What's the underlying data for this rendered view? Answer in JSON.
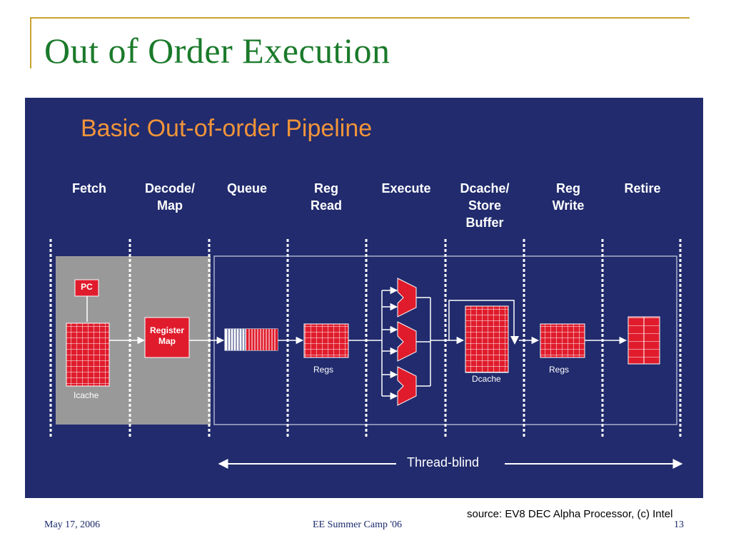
{
  "slide": {
    "title": "Out of Order Execution",
    "footer_date": "May 17, 2006",
    "footer_center": "EE Summer Camp '06",
    "page_number": "13",
    "source": "source: EV8 DEC Alpha Processor, (c) Intel"
  },
  "diagram": {
    "title": "Basic Out-of-order Pipeline",
    "stages": [
      "Fetch",
      "Decode/\nMap",
      "Queue",
      "Reg\nRead",
      "Execute",
      "Dcache/\nStore\nBuffer",
      "Reg\nWrite",
      "Retire"
    ],
    "blocks": {
      "pc": "PC",
      "register_map": "Register\nMap",
      "icache": "Icache",
      "regs_read": "Regs",
      "dcache": "Dcache",
      "regs_write": "Regs"
    },
    "thread_label": "Thread-blind"
  },
  "colors": {
    "title": "#1a7a2a",
    "frame_accent": "#c9a431",
    "diagram_bg": "#212b6d",
    "diagram_title": "#f1943a",
    "block_red": "#e01c2c",
    "front_end_gray": "#999999"
  }
}
